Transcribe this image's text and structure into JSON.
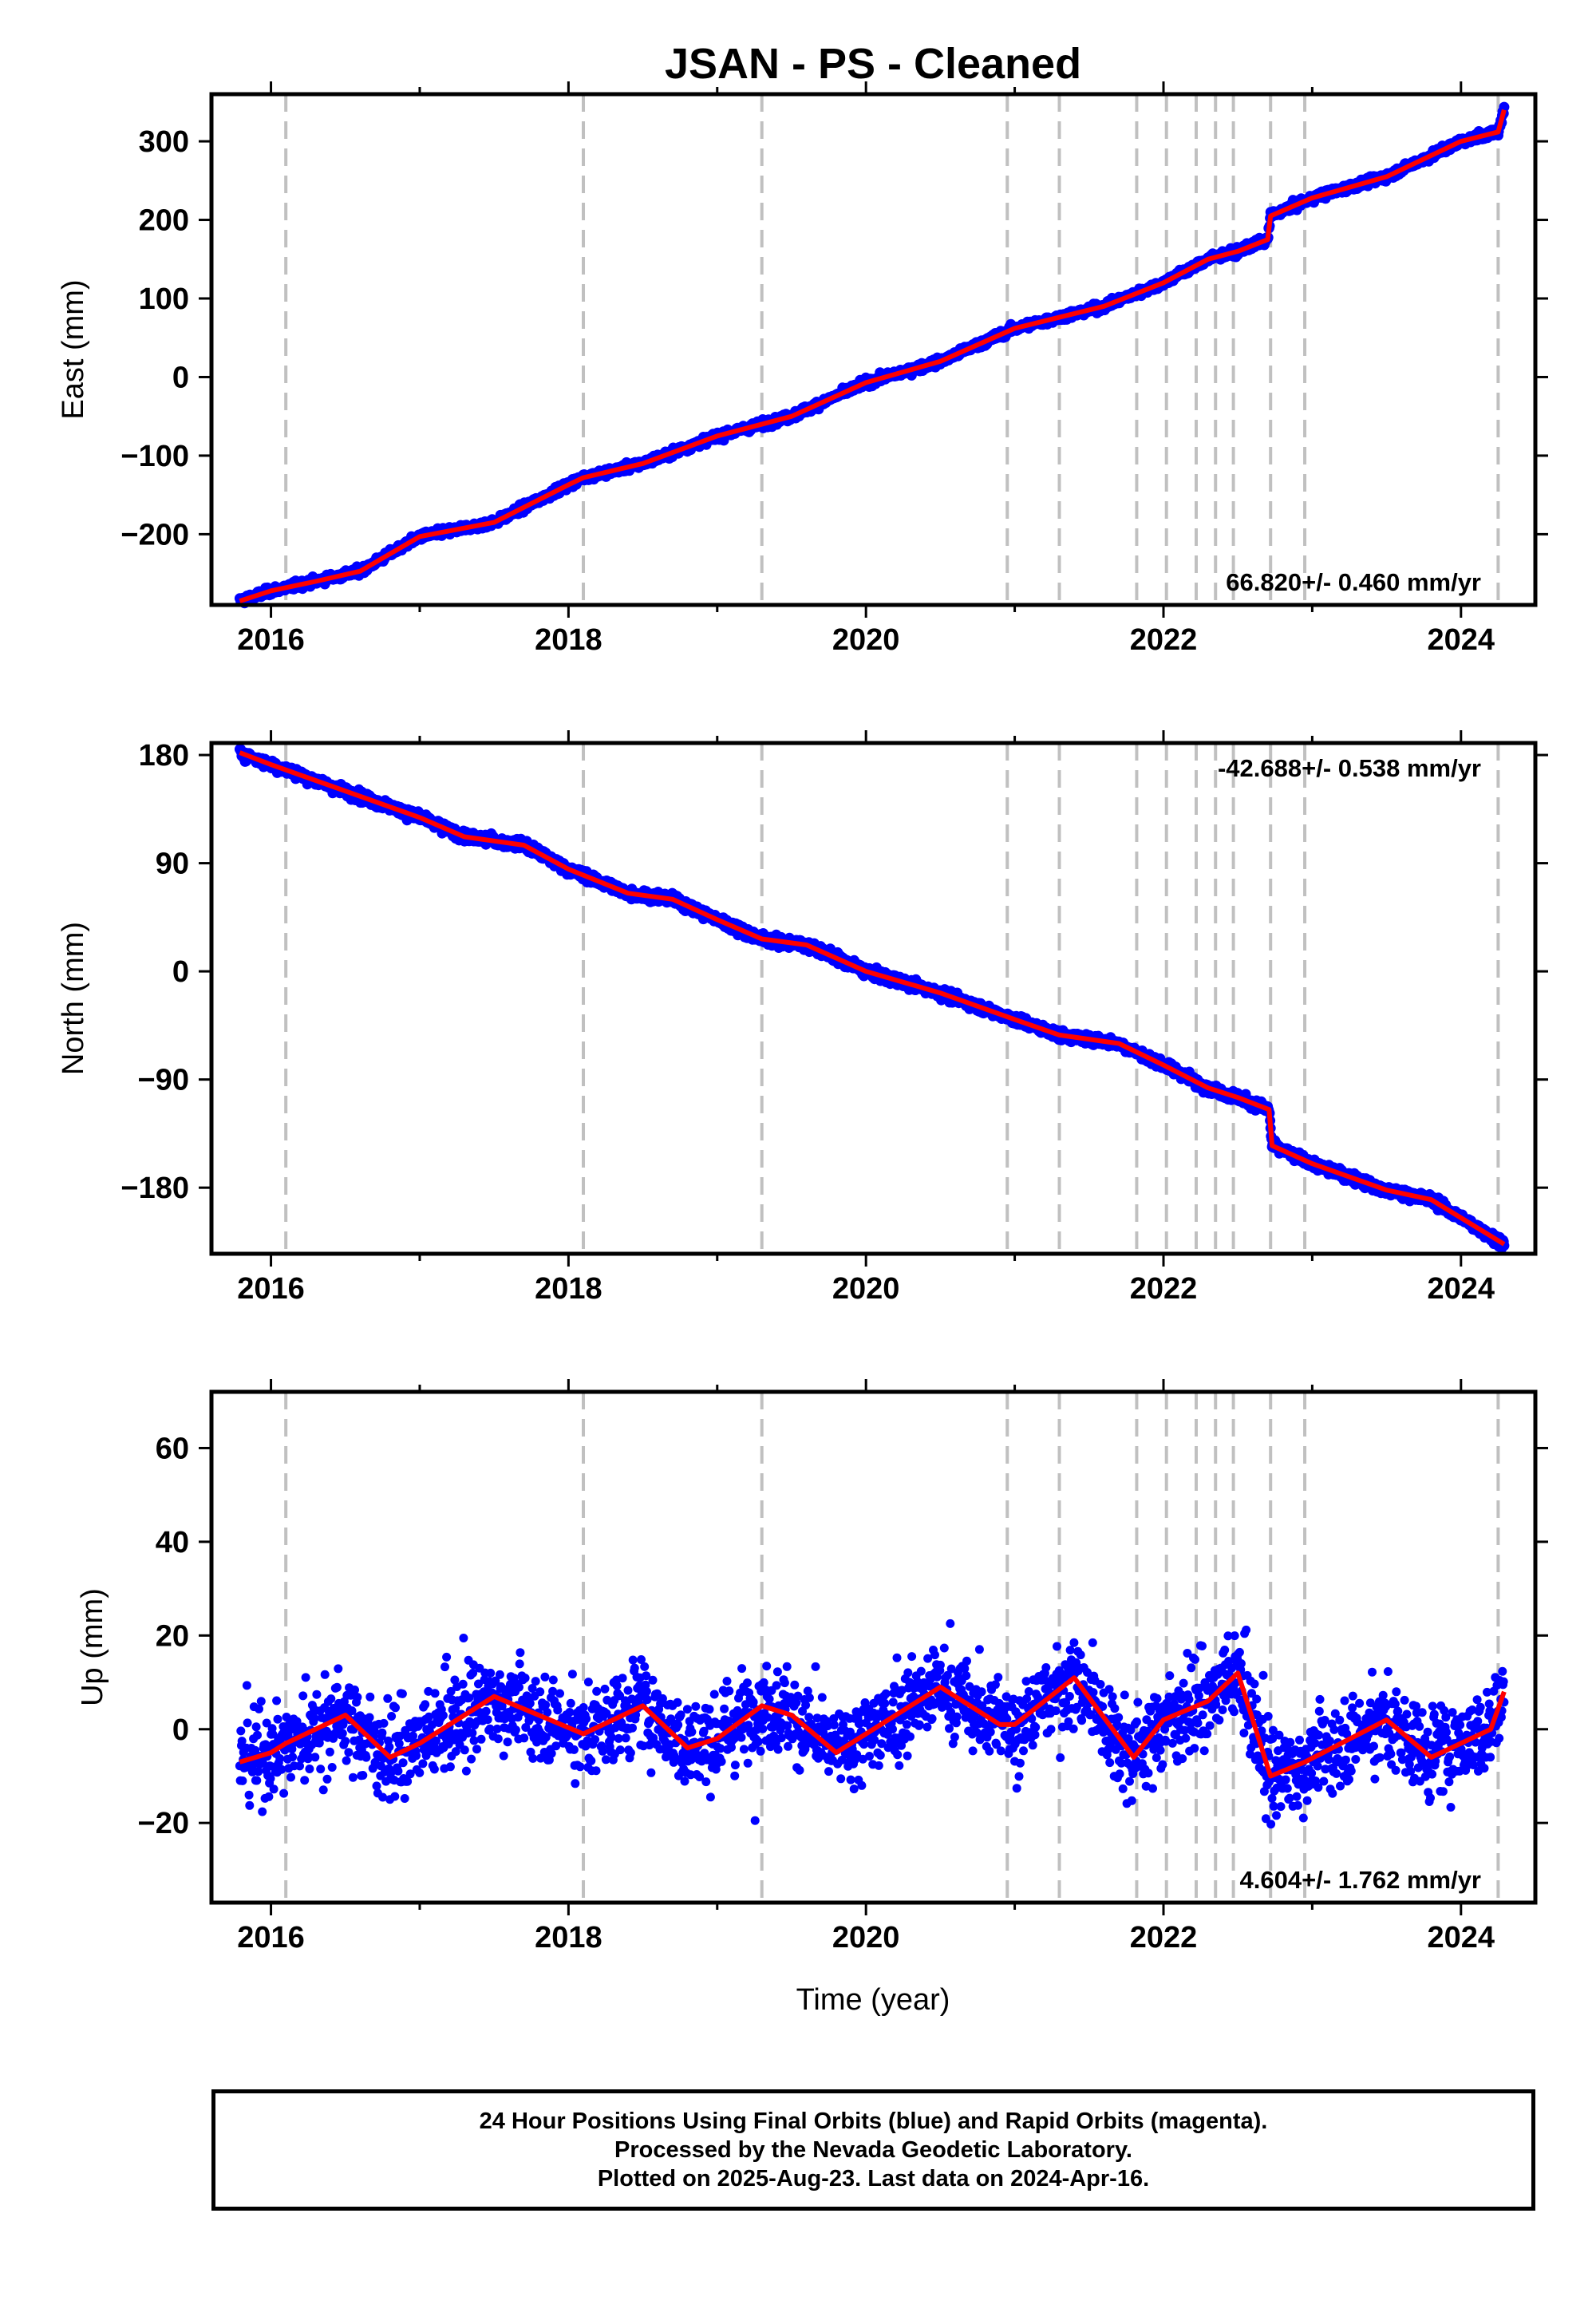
{
  "title": "JSAN  - PS - Cleaned",
  "xlabel": "Time (year)",
  "colors": {
    "points": "#0000ff",
    "model": "#ff0000",
    "breaks": "#c0c0c0",
    "frame": "#000000"
  },
  "chart_data": [
    {
      "type": "scatter",
      "ylabel": "East (mm)",
      "rate_label": "66.820+/- 0.460 mm/yr",
      "xlim": [
        2015.6,
        2024.5
      ],
      "ylim": [
        -290,
        360
      ],
      "xticks": [
        2016,
        2018,
        2020,
        2022,
        2024
      ],
      "yticks": [
        -200,
        -100,
        0,
        100,
        200,
        300
      ],
      "ytick_labels": [
        "−200",
        "−100",
        "0",
        "100",
        "200",
        "300"
      ],
      "break_epochs": [
        2016.1,
        2018.1,
        2019.3,
        2020.95,
        2021.3,
        2021.82,
        2022.02,
        2022.22,
        2022.35,
        2022.47,
        2022.72,
        2022.95,
        2024.25
      ],
      "series": [
        {
          "points": [
            [
              2015.79,
              -285
            ],
            [
              2016.0,
              -272
            ],
            [
              2016.3,
              -260
            ],
            [
              2016.6,
              -247
            ],
            [
              2017.0,
              -203
            ],
            [
              2017.5,
              -185
            ],
            [
              2018.0,
              -137
            ],
            [
              2018.1,
              -128
            ],
            [
              2018.5,
              -110
            ],
            [
              2019.0,
              -75
            ],
            [
              2019.5,
              -50
            ],
            [
              2020.0,
              -7
            ],
            [
              2020.5,
              20
            ],
            [
              2021.0,
              62
            ],
            [
              2021.3,
              76
            ],
            [
              2021.6,
              90
            ],
            [
              2022.0,
              120
            ],
            [
              2022.3,
              150
            ],
            [
              2022.5,
              160
            ],
            [
              2022.7,
              175
            ],
            [
              2022.72,
              205
            ],
            [
              2023.0,
              228
            ],
            [
              2023.5,
              255
            ],
            [
              2024.0,
              300
            ],
            [
              2024.25,
              312
            ],
            [
              2024.29,
              340
            ]
          ]
        }
      ]
    },
    {
      "type": "scatter",
      "ylabel": "North (mm)",
      "rate_label": "-42.688+/- 0.538 mm/yr",
      "xlim": [
        2015.6,
        2024.5
      ],
      "ylim": [
        -235,
        190
      ],
      "xticks": [
        2016,
        2018,
        2020,
        2022,
        2024
      ],
      "yticks": [
        -180,
        -90,
        0,
        90,
        180
      ],
      "ytick_labels": [
        "−180",
        "−90",
        "0",
        "90",
        "180"
      ],
      "break_epochs": [
        2016.1,
        2018.1,
        2019.3,
        2020.95,
        2021.3,
        2021.82,
        2022.02,
        2022.22,
        2022.35,
        2022.47,
        2022.72,
        2022.95,
        2024.25
      ],
      "series": [
        {
          "points": [
            [
              2015.79,
              182
            ],
            [
              2016.0,
              172
            ],
            [
              2016.5,
              150
            ],
            [
              2017.0,
              128
            ],
            [
              2017.3,
              112
            ],
            [
              2017.7,
              105
            ],
            [
              2018.0,
              85
            ],
            [
              2018.4,
              65
            ],
            [
              2018.7,
              60
            ],
            [
              2019.0,
              43
            ],
            [
              2019.3,
              27
            ],
            [
              2019.6,
              22
            ],
            [
              2020.0,
              0
            ],
            [
              2020.5,
              -18
            ],
            [
              2021.0,
              -40
            ],
            [
              2021.3,
              -53
            ],
            [
              2021.7,
              -60
            ],
            [
              2022.0,
              -78
            ],
            [
              2022.3,
              -97
            ],
            [
              2022.5,
              -105
            ],
            [
              2022.71,
              -115
            ],
            [
              2022.73,
              -145
            ],
            [
              2023.0,
              -160
            ],
            [
              2023.5,
              -182
            ],
            [
              2023.8,
              -190
            ],
            [
              2024.29,
              -227
            ]
          ]
        }
      ]
    },
    {
      "type": "scatter",
      "ylabel": "Up (mm)",
      "rate_label": "4.604+/- 1.762 mm/yr",
      "xlim": [
        2015.6,
        2024.5
      ],
      "ylim": [
        -37,
        72
      ],
      "xticks": [
        2016,
        2018,
        2020,
        2022,
        2024
      ],
      "yticks": [
        -20,
        0,
        20,
        40,
        60
      ],
      "ytick_labels": [
        "−20",
        "0",
        "20",
        "40",
        "60"
      ],
      "break_epochs": [
        2016.1,
        2018.1,
        2019.3,
        2020.95,
        2021.3,
        2021.82,
        2022.02,
        2022.22,
        2022.35,
        2022.47,
        2022.72,
        2022.95,
        2024.25
      ],
      "series": [
        {
          "points": [
            [
              2015.79,
              -7
            ],
            [
              2016.0,
              -5
            ],
            [
              2016.1,
              -3
            ],
            [
              2016.5,
              3
            ],
            [
              2016.8,
              -6
            ],
            [
              2017.0,
              -3
            ],
            [
              2017.5,
              7
            ],
            [
              2017.8,
              3
            ],
            [
              2018.1,
              -1
            ],
            [
              2018.5,
              5
            ],
            [
              2018.8,
              -4
            ],
            [
              2019.0,
              -2
            ],
            [
              2019.3,
              5
            ],
            [
              2019.5,
              3
            ],
            [
              2019.8,
              -5
            ],
            [
              2020.0,
              -1
            ],
            [
              2020.5,
              9
            ],
            [
              2020.9,
              1
            ],
            [
              2021.0,
              1
            ],
            [
              2021.4,
              11
            ],
            [
              2021.8,
              -6
            ],
            [
              2022.0,
              2
            ],
            [
              2022.3,
              6
            ],
            [
              2022.5,
              12
            ],
            [
              2022.72,
              -10
            ],
            [
              2022.95,
              -7
            ],
            [
              2023.5,
              2
            ],
            [
              2023.8,
              -6
            ],
            [
              2024.2,
              0
            ],
            [
              2024.29,
              8
            ]
          ]
        }
      ]
    }
  ],
  "footer": {
    "line1": "24 Hour Positions Using Final Orbits (blue) and Rapid Orbits (magenta).",
    "line2": "Processed by the Nevada Geodetic Laboratory.",
    "line3": "Plotted on 2025-Aug-23. Last data on 2024-Apr-16."
  }
}
